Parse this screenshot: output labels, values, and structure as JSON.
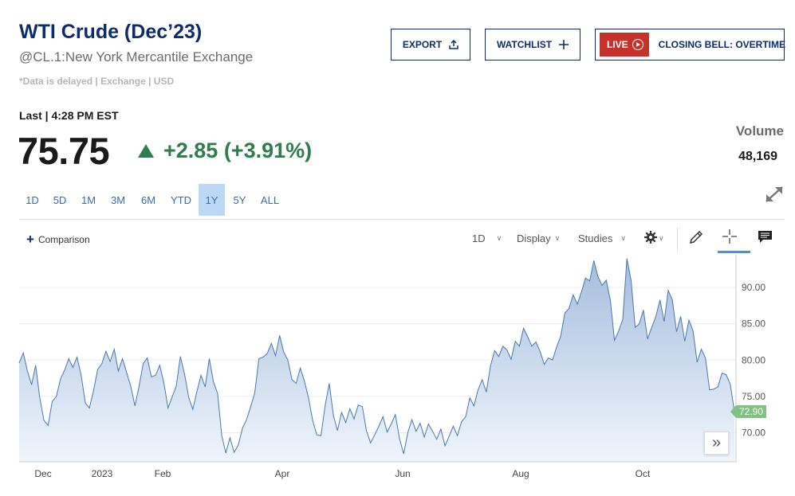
{
  "header": {
    "title": "WTI Crude (Dec’23)",
    "subtitle": "@CL.1:New York Mercantile Exchange",
    "note": "*Data is delayed | Exchange | USD",
    "export_label": "EXPORT",
    "watchlist_label": "WATCHLIST",
    "live_label": "LIVE",
    "closing_bell_label": "CLOSING BELL: OVERTIME"
  },
  "quote": {
    "last_label": "Last | 4:28 PM EST",
    "price": "75.75",
    "change": "+2.85 (+3.91%)",
    "volume_label": "Volume",
    "volume_value": "48,169",
    "up_color": "#2e7d4f"
  },
  "ranges": [
    "1D",
    "5D",
    "1M",
    "3M",
    "6M",
    "YTD",
    "1Y",
    "5Y",
    "ALL"
  ],
  "active_range": "1Y",
  "toolbar": {
    "comparison_label": "Comparison",
    "interval_label": "1D",
    "display_label": "Display",
    "studies_label": "Studies",
    "icons": [
      "gear-icon",
      "pencil-icon",
      "crosshair-icon",
      "comment-icon"
    ]
  },
  "scroll_icon": "double-chevron-right-icon",
  "chart_data": {
    "type": "area",
    "title": "",
    "xlabel": "",
    "ylabel": "",
    "x_ticks": [
      "Dec",
      "2023",
      "Feb",
      "Apr",
      "Jun",
      "Aug",
      "Oct"
    ],
    "y_ticks": [
      70.0,
      75.0,
      80.0,
      85.0,
      90.0
    ],
    "ylim": [
      66.0,
      94.5
    ],
    "grid": true,
    "last_value_label": "72.90",
    "last_value": 72.9,
    "line_color": "#4a78b0",
    "last_label_color": "#7fc17f",
    "series": [
      {
        "values": [
          79.6,
          81.0,
          78.5,
          76.6,
          79.3,
          74.8,
          71.7,
          71.0,
          74.3,
          75.0,
          77.4,
          78.6,
          80.2,
          79.0,
          80.4,
          77.9,
          74.1,
          73.4,
          75.8,
          78.7,
          79.5,
          81.2,
          79.8,
          81.5,
          78.5,
          80.2,
          78.3,
          76.4,
          73.7,
          76.4,
          79.5,
          80.3,
          77.7,
          77.9,
          79.3,
          76.9,
          73.4,
          74.9,
          76.4,
          80.5,
          78.1,
          74.9,
          73.2,
          75.7,
          77.9,
          76.3,
          80.2,
          77.0,
          75.4,
          69.6,
          67.2,
          69.3,
          67.3,
          68.3,
          70.6,
          71.8,
          73.6,
          75.5,
          80.2,
          80.4,
          80.9,
          82.3,
          80.6,
          83.4,
          81.1,
          80.0,
          77.3,
          76.8,
          78.9,
          77.1,
          74.8,
          71.7,
          69.7,
          69.6,
          73.7,
          76.8,
          72.4,
          70.3,
          72.8,
          71.4,
          73.3,
          71.9,
          73.8,
          73.6,
          70.3,
          68.6,
          69.7,
          70.9,
          72.2,
          70.1,
          71.2,
          72.5,
          69.2,
          67.1,
          70.0,
          71.8,
          70.2,
          71.3,
          69.4,
          71.2,
          70.2,
          69.1,
          70.5,
          68.2,
          69.5,
          70.9,
          69.6,
          71.5,
          72.2,
          74.8,
          73.7,
          75.9,
          77.3,
          75.6,
          79.2,
          81.3,
          80.5,
          81.9,
          81.4,
          80.1,
          82.6,
          81.9,
          84.4,
          83.2,
          81.9,
          82.5,
          81.2,
          79.4,
          80.3,
          80.0,
          81.8,
          83.3,
          86.5,
          87.1,
          89.0,
          87.7,
          89.4,
          91.3,
          90.9,
          93.7,
          91.5,
          90.3,
          91.0,
          88.2,
          82.7,
          84.0,
          85.6,
          94.0,
          91.0,
          84.5,
          85.0,
          86.9,
          82.9,
          84.5,
          86.0,
          88.3,
          85.3,
          89.6,
          88.3,
          83.9,
          86.0,
          82.6,
          85.5,
          84.0,
          79.7,
          81.5,
          80.3,
          75.9,
          76.0,
          76.3,
          78.2,
          78.0,
          76.7,
          72.9
        ]
      }
    ]
  }
}
